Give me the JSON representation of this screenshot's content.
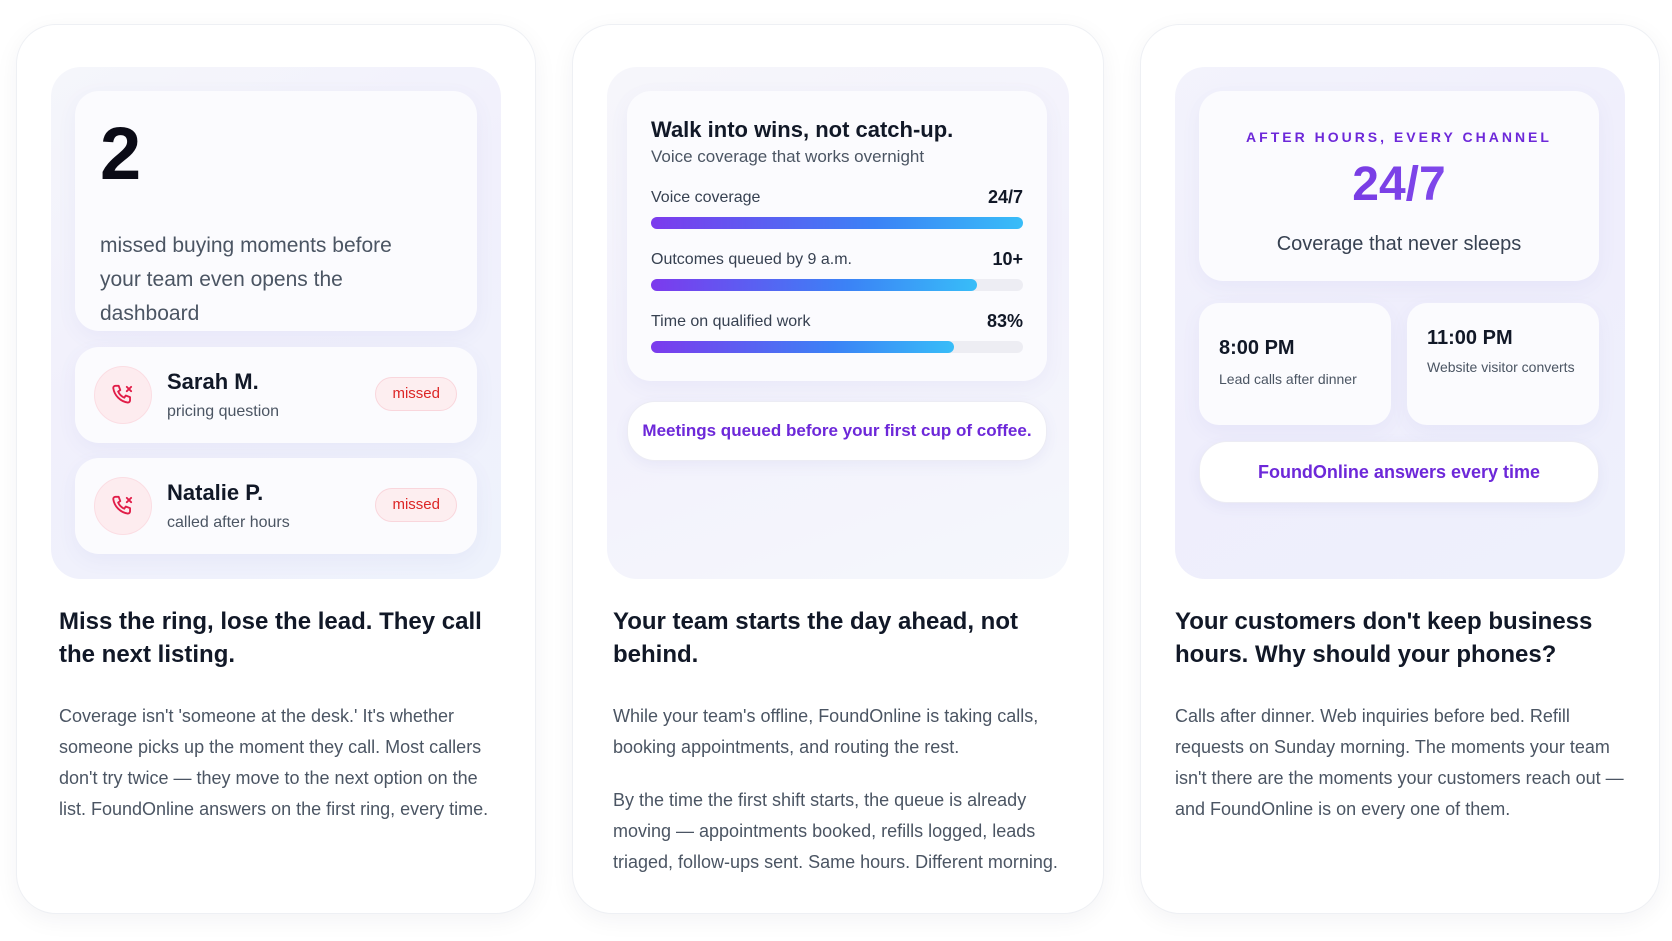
{
  "card1": {
    "stat_number": "2",
    "stat_text": "missed buying moments before your team even opens the dashboard",
    "callers": [
      {
        "name": "Sarah M.",
        "detail": "pricing question",
        "status": "missed"
      },
      {
        "name": "Natalie P.",
        "detail": "called after hours",
        "status": "missed"
      }
    ],
    "heading": "Miss the ring, lose the lead. They call the next listing.",
    "body": "Coverage isn't 'someone at the desk.' It's whether someone picks up the moment they call. Most callers don't try twice — they move to the next option on the list. FoundOnline answers on the first ring, every time."
  },
  "card2": {
    "metrics_title": "Walk into wins, not catch-up.",
    "metrics_subtitle": "Voice coverage that works overnight",
    "metrics": [
      {
        "label": "Voice coverage",
        "value": "24/7",
        "fill": 1.0
      },
      {
        "label": "Outcomes queued by 9 a.m.",
        "value": "10+",
        "fill": 0.875
      },
      {
        "label": "Time on qualified work",
        "value": "83%",
        "fill": 0.815
      }
    ],
    "pill": "Meetings queued before your first cup of coffee.",
    "heading": "Your team starts the day ahead, not behind.",
    "body1": "While your team's offline, FoundOnline is taking calls, booking appointments, and routing the rest.",
    "body2": "By the time the first shift starts, the queue is already moving — appointments booked, refills logged, leads triaged, follow-ups sent. Same hours. Different morning."
  },
  "card3": {
    "eyebrow": "AFTER HOURS, EVERY CHANNEL",
    "big_stat": "24/7",
    "big_stat_sub": "Coverage that never sleeps",
    "times": [
      {
        "time": "8:00 PM",
        "desc": "Lead calls after dinner"
      },
      {
        "time": "11:00 PM",
        "desc": "Website visitor converts"
      }
    ],
    "pill": "FoundOnline answers every time",
    "heading": "Your customers don't keep business hours. Why should your phones?",
    "body": "Calls after dinner. Web inquiries before bed. Refill requests on Sunday morning. The moments your team isn't there are the moments your customers reach out — and FoundOnline is on every one of them."
  },
  "colors": {
    "accent": "#6d28d9",
    "missed": "#dc2626",
    "bar_start": "#7c3aed",
    "bar_end": "#38bdf8"
  },
  "icons": {
    "missed_call": "phone-missed-icon"
  }
}
